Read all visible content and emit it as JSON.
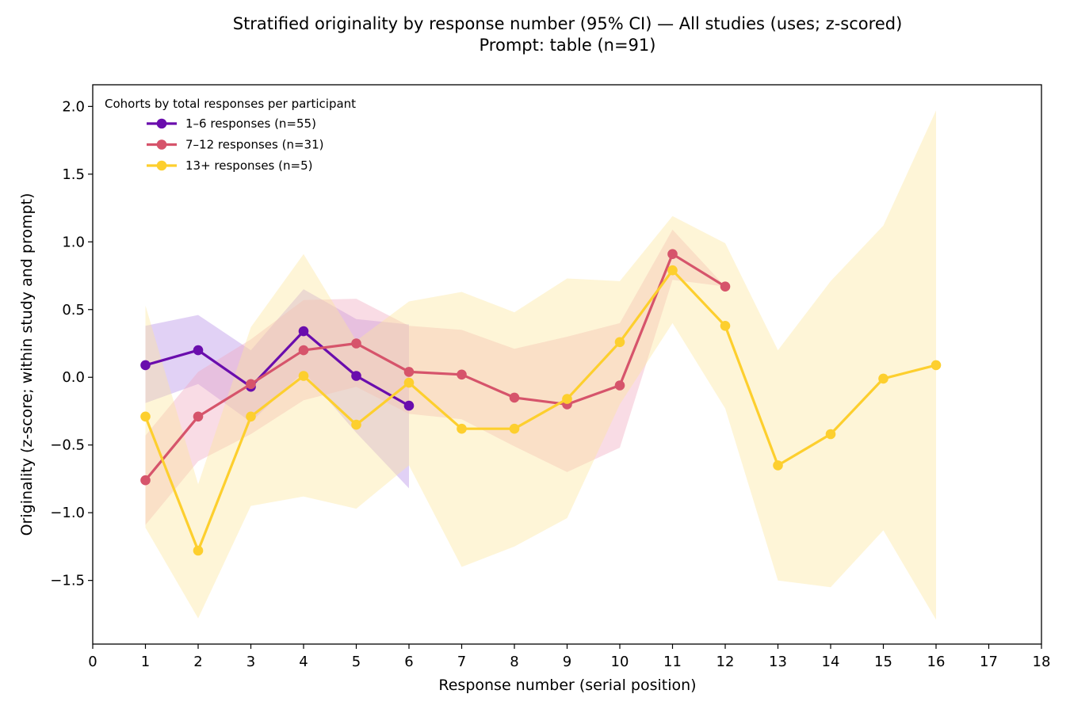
{
  "chart_data": {
    "type": "line",
    "title_line1": "Stratified originality by response number (95% CI) — All studies (uses; z-scored)",
    "title_line2": "Prompt: table (n=91)",
    "xlabel": "Response number (serial position)",
    "ylabel": "Originality (z-score; within study and prompt)",
    "xlim": [
      0,
      18
    ],
    "ylim": [
      -1.97,
      2.16
    ],
    "xticks": [
      0,
      1,
      2,
      3,
      4,
      5,
      6,
      7,
      8,
      9,
      10,
      11,
      12,
      13,
      14,
      15,
      16,
      17,
      18
    ],
    "yticks": [
      -1.5,
      -1.0,
      -0.5,
      0.0,
      0.5,
      1.0,
      1.5,
      2.0
    ],
    "ytick_labels": [
      "−1.5",
      "−1.0",
      "−0.5",
      "0.0",
      "0.5",
      "1.0",
      "1.5",
      "2.0"
    ],
    "grid": false,
    "legend": {
      "title": "Cohorts by total responses per participant",
      "placement": "top-left"
    },
    "series": [
      {
        "name": "1–6 responses (n=55)",
        "color": "#6a0dad",
        "band_color": "#b48be6",
        "x": [
          1,
          2,
          3,
          4,
          5,
          6
        ],
        "y": [
          0.09,
          0.2,
          -0.07,
          0.34,
          0.01,
          -0.21
        ],
        "lower": [
          -0.19,
          -0.05,
          -0.33,
          0.04,
          -0.41,
          -0.82
        ],
        "upper": [
          0.38,
          0.46,
          0.2,
          0.65,
          0.43,
          0.39
        ]
      },
      {
        "name": "7–12 responses (n=31)",
        "color": "#d6546b",
        "band_color": "#f0a8bf",
        "x": [
          1,
          2,
          3,
          4,
          5,
          6,
          7,
          8,
          9,
          10,
          11,
          12
        ],
        "y": [
          -0.76,
          -0.29,
          -0.05,
          0.2,
          0.25,
          0.04,
          0.02,
          -0.15,
          -0.2,
          -0.06,
          0.91,
          0.67
        ],
        "lower": [
          -1.09,
          -0.62,
          -0.42,
          -0.17,
          -0.07,
          -0.27,
          -0.31,
          -0.51,
          -0.7,
          -0.52,
          0.72,
          0.67
        ],
        "upper": [
          -0.43,
          0.04,
          0.28,
          0.57,
          0.58,
          0.38,
          0.35,
          0.21,
          0.3,
          0.4,
          1.09,
          0.67
        ]
      },
      {
        "name": "13+ responses (n=5)",
        "color": "#fdcf2e",
        "band_color": "#fde59a",
        "x": [
          1,
          2,
          3,
          4,
          5,
          6,
          7,
          8,
          9,
          10,
          11,
          12,
          13,
          14,
          15,
          16
        ],
        "y": [
          -0.29,
          -1.28,
          -0.29,
          0.01,
          -0.35,
          -0.04,
          -0.38,
          -0.38,
          -0.16,
          0.26,
          0.79,
          0.38,
          -0.65,
          -0.42,
          -0.01,
          0.09
        ],
        "lower": [
          -1.11,
          -1.78,
          -0.95,
          -0.88,
          -0.97,
          -0.65,
          -1.4,
          -1.25,
          -1.04,
          -0.2,
          0.4,
          -0.23,
          -1.5,
          -1.55,
          -1.13,
          -1.79
        ],
        "upper": [
          0.53,
          -0.79,
          0.37,
          0.91,
          0.27,
          0.56,
          0.63,
          0.48,
          0.73,
          0.71,
          1.19,
          0.99,
          0.2,
          0.71,
          1.12,
          1.97
        ]
      }
    ]
  }
}
